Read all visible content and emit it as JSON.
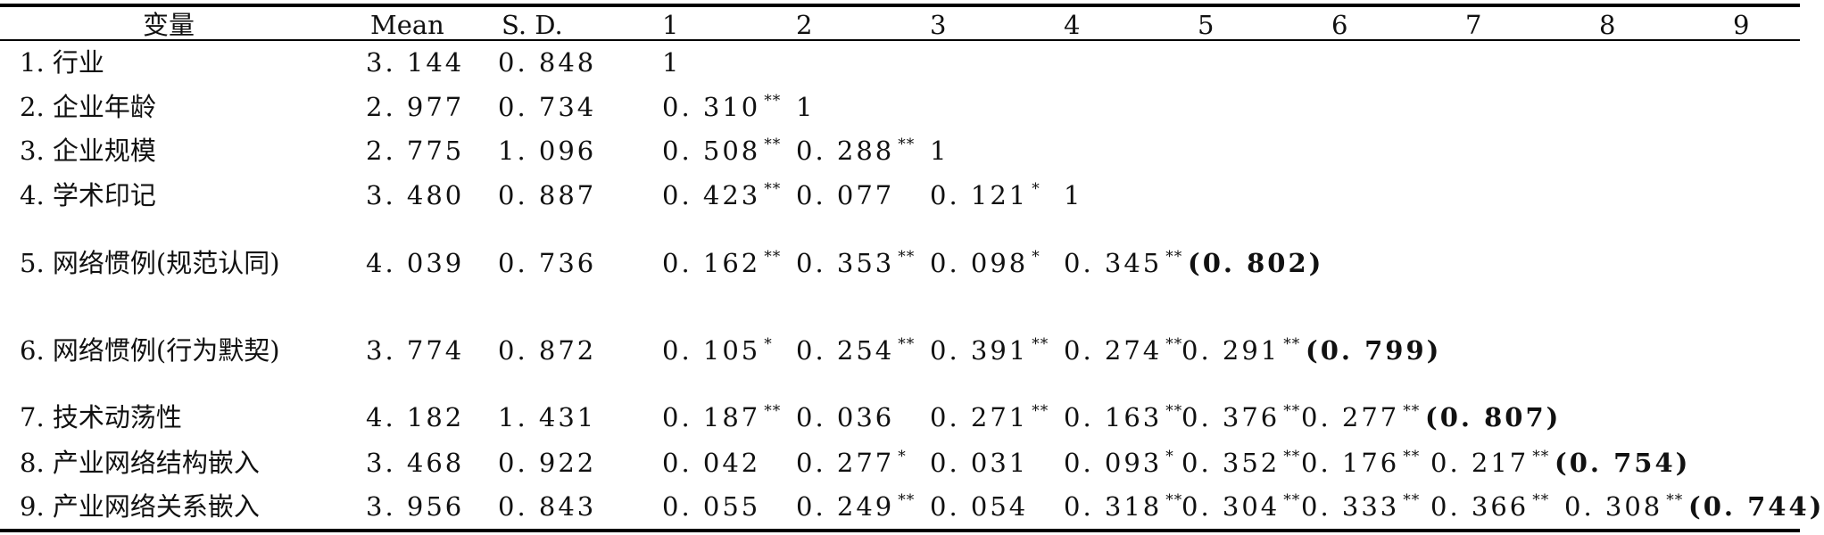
{
  "header": [
    "变量",
    "Mean",
    "S. D.",
    "1",
    "2",
    "3",
    "4",
    "5",
    "6",
    "7",
    "8",
    "9"
  ],
  "rows": [
    {
      "label": "1. 行业",
      "mean": "3. 144",
      "sd": "0. 848",
      "cells": [
        {
          "v": "1",
          "s": ""
        }
      ]
    },
    {
      "label": "2. 企业年龄",
      "mean": "2. 977",
      "sd": "0. 734",
      "cells": [
        {
          "v": "0. 310",
          "s": "**"
        },
        {
          "v": "1",
          "s": ""
        }
      ]
    },
    {
      "label": "3. 企业规模",
      "mean": "2. 775",
      "sd": "1. 096",
      "cells": [
        {
          "v": "0. 508",
          "s": "**"
        },
        {
          "v": "0. 288",
          "s": "**"
        },
        {
          "v": "1",
          "s": ""
        }
      ]
    },
    {
      "label": "4. 学术印记",
      "mean": "3. 480",
      "sd": "0. 887",
      "cells": [
        {
          "v": "0. 423",
          "s": "**"
        },
        {
          "v": "0. 077",
          "s": ""
        },
        {
          "v": "0. 121",
          "s": "*"
        },
        {
          "v": "1",
          "s": ""
        }
      ]
    },
    {
      "label": "5. 网络惯例(规范认同)",
      "mean": "4. 039",
      "sd": "0. 736",
      "cells": [
        {
          "v": "0. 162",
          "s": "**"
        },
        {
          "v": "0. 353",
          "s": "**"
        },
        {
          "v": "0. 098",
          "s": "*"
        },
        {
          "v": "0. 345",
          "s": "**"
        }
      ],
      "diag": "(0. 802)"
    },
    {
      "label": "6. 网络惯例(行为默契)",
      "mean": "3. 774",
      "sd": "0. 872",
      "cells": [
        {
          "v": "0. 105",
          "s": "*"
        },
        {
          "v": "0. 254",
          "s": "**"
        },
        {
          "v": "0. 391",
          "s": "**"
        },
        {
          "v": "0. 274",
          "s": "**"
        },
        {
          "v": "0. 291",
          "s": "**"
        }
      ],
      "diag": "(0. 799)"
    },
    {
      "label": "7. 技术动荡性",
      "mean": "4. 182",
      "sd": "1. 431",
      "cells": [
        {
          "v": "0. 187",
          "s": "**"
        },
        {
          "v": "0. 036",
          "s": ""
        },
        {
          "v": "0. 271",
          "s": "**"
        },
        {
          "v": "0. 163",
          "s": "**"
        },
        {
          "v": "0. 376",
          "s": "**"
        },
        {
          "v": "0. 277",
          "s": "**"
        }
      ],
      "diag": "(0. 807)"
    },
    {
      "label": "8. 产业网络结构嵌入",
      "mean": "3. 468",
      "sd": "0. 922",
      "cells": [
        {
          "v": "0. 042",
          "s": ""
        },
        {
          "v": "0. 277",
          "s": "*"
        },
        {
          "v": "0. 031",
          "s": ""
        },
        {
          "v": "0. 093",
          "s": "*"
        },
        {
          "v": "0. 352",
          "s": "**"
        },
        {
          "v": "0. 176",
          "s": "**"
        },
        {
          "v": "0. 217",
          "s": "**"
        }
      ],
      "diag": "(0. 754)"
    },
    {
      "label": "9. 产业网络关系嵌入",
      "mean": "3. 956",
      "sd": "0. 843",
      "cells": [
        {
          "v": "0. 055",
          "s": ""
        },
        {
          "v": "0. 249",
          "s": "**"
        },
        {
          "v": "0. 054",
          "s": ""
        },
        {
          "v": "0. 318",
          "s": "**"
        },
        {
          "v": "0. 304",
          "s": "**"
        },
        {
          "v": "0. 333",
          "s": "**"
        },
        {
          "v": "0. 366",
          "s": "**"
        },
        {
          "v": "0. 308",
          "s": "**"
        }
      ],
      "diag": "(0. 744)"
    }
  ]
}
